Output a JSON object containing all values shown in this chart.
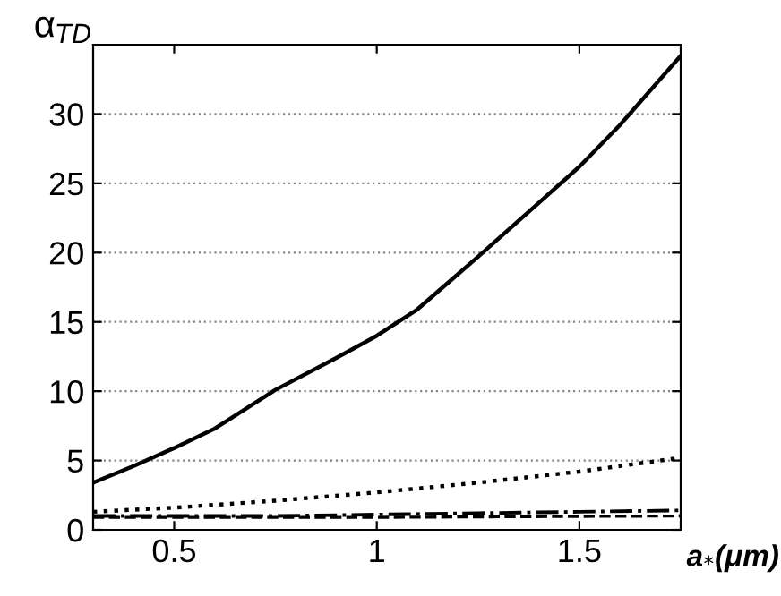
{
  "chart_data": {
    "type": "line",
    "xlabel": "a$_{*}$(μm)",
    "ylabel": "α$_{TD}$",
    "xlim": [
      0.3,
      1.75
    ],
    "ylim": [
      0,
      35
    ],
    "xticks": [
      0.5,
      1,
      1.5
    ],
    "yticks": [
      0,
      5,
      10,
      15,
      20,
      25,
      30
    ],
    "grid": "y",
    "series": [
      {
        "color": "#000000",
        "line_style": "solid",
        "x": [
          0.3,
          0.4,
          0.5,
          0.6,
          0.75,
          0.9,
          1.0,
          1.1,
          1.25,
          1.4,
          1.5,
          1.6,
          1.75
        ],
        "values": [
          3.4,
          4.6,
          5.9,
          7.3,
          10.1,
          12.4,
          14.0,
          15.9,
          19.7,
          23.6,
          26.2,
          29.2,
          34.2
        ]
      },
      {
        "color": "#000000",
        "line_style": "dotted",
        "x": [
          0.3,
          0.5,
          0.75,
          1.0,
          1.25,
          1.5,
          1.75
        ],
        "values": [
          1.3,
          1.6,
          2.1,
          2.7,
          3.4,
          4.2,
          5.2
        ]
      },
      {
        "color": "#000000",
        "line_style": "dashed",
        "x": [
          0.3,
          1.0,
          1.75
        ],
        "values": [
          0.9,
          0.9,
          1.0
        ]
      },
      {
        "color": "#000000",
        "line_style": "dashdot",
        "x": [
          0.3,
          0.75,
          1.0,
          1.25,
          1.5,
          1.75
        ],
        "values": [
          1.0,
          1.0,
          1.1,
          1.2,
          1.3,
          1.4
        ]
      }
    ]
  }
}
